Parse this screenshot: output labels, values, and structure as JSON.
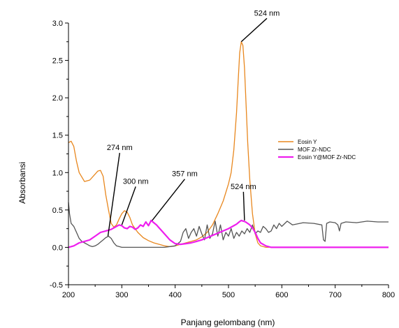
{
  "chart_data": {
    "type": "line",
    "xlabel": "Panjang gelombang (nm)",
    "ylabel": "Absorbansi",
    "xlim": [
      200,
      800
    ],
    "ylim": [
      -0.5,
      3.0
    ],
    "xticks": [
      200,
      300,
      400,
      500,
      600,
      700,
      800
    ],
    "yticks": [
      -0.5,
      0.0,
      0.5,
      1.0,
      1.5,
      2.0,
      2.5,
      3.0
    ],
    "xtick_labels": [
      "200",
      "300",
      "400",
      "500",
      "600",
      "700",
      "800"
    ],
    "ytick_labels": [
      "-0.5",
      "0.0",
      "0.5",
      "1.0",
      "1.5",
      "2.0",
      "2.5",
      "3.0"
    ],
    "grid": false,
    "legend_position": "right",
    "series": [
      {
        "name": "Eosin Y",
        "color": "#e8871e",
        "x": [
          200,
          205,
          210,
          215,
          220,
          230,
          240,
          250,
          255,
          260,
          265,
          270,
          275,
          280,
          285,
          290,
          295,
          300,
          305,
          310,
          315,
          320,
          330,
          340,
          350,
          360,
          370,
          380,
          390,
          400,
          410,
          420,
          430,
          440,
          450,
          460,
          470,
          480,
          490,
          500,
          505,
          510,
          515,
          518,
          521,
          524,
          527,
          530,
          533,
          536,
          540,
          545,
          550,
          555,
          560,
          570,
          580,
          600,
          700,
          800
        ],
        "y": [
          1.4,
          1.42,
          1.35,
          1.15,
          1.0,
          0.88,
          0.9,
          0.98,
          1.02,
          1.03,
          0.95,
          0.7,
          0.5,
          0.32,
          0.27,
          0.3,
          0.38,
          0.45,
          0.49,
          0.47,
          0.4,
          0.3,
          0.2,
          0.13,
          0.09,
          0.06,
          0.04,
          0.02,
          0.01,
          0.02,
          0.04,
          0.06,
          0.08,
          0.1,
          0.14,
          0.2,
          0.3,
          0.45,
          0.62,
          0.85,
          1.0,
          1.3,
          1.8,
          2.2,
          2.6,
          2.75,
          2.7,
          2.4,
          1.9,
          1.4,
          0.9,
          0.45,
          0.18,
          0.06,
          0.02,
          0.0,
          0.0,
          0.0,
          0.0,
          0.0
        ]
      },
      {
        "name": "MOF Zr-NDC",
        "color": "#555555",
        "x": [
          200,
          202,
          205,
          210,
          215,
          220,
          225,
          230,
          235,
          240,
          245,
          250,
          255,
          260,
          265,
          270,
          275,
          280,
          285,
          290,
          300,
          320,
          340,
          360,
          380,
          400,
          410,
          415,
          420,
          425,
          430,
          435,
          440,
          445,
          450,
          455,
          460,
          465,
          470,
          475,
          480,
          485,
          490,
          495,
          500,
          505,
          510,
          515,
          520,
          525,
          530,
          535,
          540,
          545,
          550,
          555,
          560,
          565,
          570,
          575,
          580,
          585,
          590,
          595,
          600,
          610,
          620,
          640,
          660,
          675,
          678,
          681,
          684,
          690,
          700,
          705,
          708,
          711,
          720,
          740,
          760,
          780,
          800
        ],
        "y": [
          0.6,
          0.45,
          0.32,
          0.28,
          0.2,
          0.12,
          0.08,
          0.06,
          0.04,
          0.02,
          0.01,
          0.02,
          0.04,
          0.07,
          0.1,
          0.13,
          0.15,
          0.12,
          0.06,
          0.02,
          0.0,
          0.0,
          0.0,
          0.0,
          0.0,
          0.02,
          0.08,
          0.2,
          0.25,
          0.12,
          0.2,
          0.25,
          0.15,
          0.28,
          0.18,
          0.1,
          0.3,
          0.12,
          0.18,
          0.35,
          0.15,
          0.3,
          0.1,
          0.2,
          0.15,
          0.25,
          0.12,
          0.2,
          0.15,
          0.22,
          0.18,
          0.25,
          0.2,
          0.3,
          0.18,
          0.22,
          0.2,
          0.28,
          0.25,
          0.2,
          0.22,
          0.3,
          0.25,
          0.32,
          0.28,
          0.35,
          0.3,
          0.33,
          0.32,
          0.3,
          0.1,
          0.08,
          0.32,
          0.34,
          0.33,
          0.3,
          0.22,
          0.32,
          0.34,
          0.33,
          0.35,
          0.34,
          0.34
        ]
      },
      {
        "name": "Eosin Y@MOF Zr-NDC",
        "color": "#ee1eee",
        "x": [
          200,
          210,
          220,
          230,
          240,
          250,
          260,
          270,
          280,
          290,
          295,
          300,
          305,
          310,
          315,
          320,
          325,
          330,
          335,
          340,
          345,
          350,
          355,
          360,
          365,
          370,
          380,
          390,
          400,
          410,
          420,
          430,
          440,
          450,
          460,
          470,
          480,
          490,
          500,
          510,
          515,
          520,
          524,
          528,
          532,
          536,
          540,
          545,
          550,
          555,
          560,
          570,
          580,
          600,
          700,
          800
        ],
        "y": [
          0.0,
          0.02,
          0.06,
          0.08,
          0.1,
          0.15,
          0.2,
          0.22,
          0.24,
          0.28,
          0.3,
          0.29,
          0.26,
          0.25,
          0.28,
          0.27,
          0.24,
          0.26,
          0.3,
          0.28,
          0.34,
          0.29,
          0.36,
          0.33,
          0.3,
          0.26,
          0.18,
          0.1,
          0.05,
          0.04,
          0.05,
          0.06,
          0.08,
          0.1,
          0.13,
          0.16,
          0.19,
          0.22,
          0.25,
          0.29,
          0.31,
          0.34,
          0.36,
          0.35,
          0.34,
          0.32,
          0.3,
          0.26,
          0.2,
          0.12,
          0.06,
          0.02,
          0.0,
          0.0,
          0.0,
          0.0
        ]
      }
    ],
    "annotations": [
      {
        "text": "274 nm",
        "at": [
          274,
          0.15
        ],
        "label_at": [
          296,
          1.3
        ]
      },
      {
        "text": "300 nm",
        "at": [
          300,
          0.3
        ],
        "label_at": [
          326,
          0.85
        ]
      },
      {
        "text": "357 nm",
        "at": [
          357,
          0.36
        ],
        "label_at": [
          418,
          0.95
        ]
      },
      {
        "text": "524 nm",
        "at": [
          524,
          2.75
        ],
        "label_at": [
          572,
          3.1
        ]
      },
      {
        "text": "524 nm",
        "at": [
          530,
          0.36
        ],
        "label_at": [
          528,
          0.78
        ]
      }
    ]
  }
}
